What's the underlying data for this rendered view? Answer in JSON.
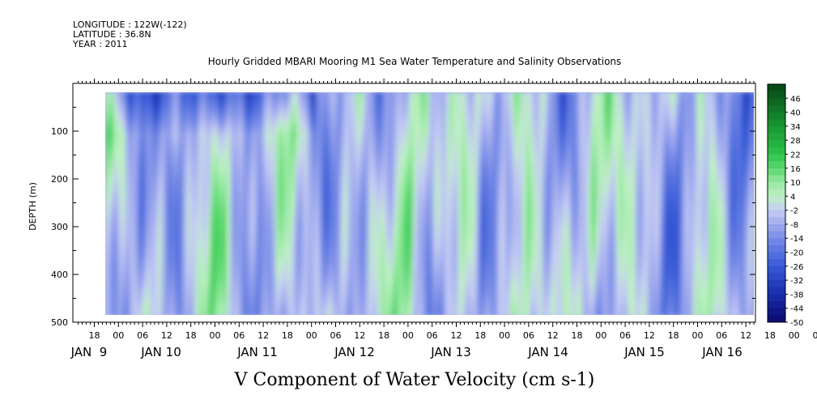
{
  "header": {
    "longitude": "LONGITUDE : 122W(-122)",
    "latitude": "LATITUDE : 36.8N",
    "year": "YEAR : 2011"
  },
  "chart_data": {
    "type": "heatmap",
    "title": "Hourly Gridded MBARI Mooring M1 Sea Water Temperature and Salinity Observations",
    "xlabel": "V Component of Water Velocity (cm s-1)",
    "ylabel": "DEPTH (m)",
    "ylim": [
      500,
      0
    ],
    "y_reversed": true,
    "y_ticks": [
      100,
      200,
      300,
      400,
      500
    ],
    "x_hour_ticks": [
      "18",
      "00",
      "06",
      "12",
      "18",
      "00",
      "06",
      "12",
      "18",
      "00",
      "06",
      "12",
      "18",
      "00",
      "06",
      "12",
      "18",
      "00",
      "06",
      "12",
      "18",
      "00",
      "06",
      "12",
      "18",
      "00",
      "06",
      "12",
      "18",
      "00",
      "06",
      "12"
    ],
    "x_day_labels": [
      "JAN  9",
      "JAN 10",
      "JAN 11",
      "JAN 12",
      "JAN 13",
      "JAN 14",
      "JAN 15",
      "JAN 16"
    ],
    "data_depth_range": [
      20,
      485
    ],
    "colorbar": {
      "labels": [
        "46",
        "40",
        "34",
        "28",
        "22",
        "16",
        "10",
        "4",
        "-2",
        "-8",
        "-14",
        "-20",
        "-26",
        "-32",
        "-38",
        "-44",
        "-50"
      ],
      "range": [
        -50,
        52
      ],
      "colors": {
        "strong_negative": "#0a0a6e",
        "negative": "#3a5fd6",
        "weak_negative": "#aab4ee",
        "weak_positive": "#a8ecb0",
        "positive": "#2fc04a",
        "strong_positive": "#0a4a14"
      }
    },
    "annotation": "Field dominated by weak negative (-14 to -2, light blue/lavender) velocities with vertical bands of weak positive (4 to 22, green) flow; stronger negative (blue) near surface JAN 9-11."
  }
}
